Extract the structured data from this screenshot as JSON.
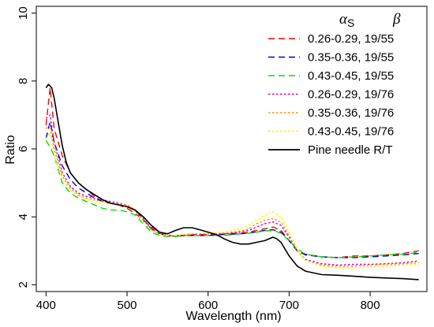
{
  "chart_data": {
    "type": "line",
    "xlabel": "Wavelength (nm)",
    "ylabel": "Ratio",
    "xlim": [
      388,
      870
    ],
    "ylim": [
      1.8,
      10.2
    ],
    "xticks": [
      400,
      500,
      600,
      700,
      800
    ],
    "yticks": [
      2,
      4,
      6,
      8,
      10
    ],
    "grid": false,
    "legend_position": "top-right",
    "legend_header": {
      "alpha": "α",
      "alpha_sub": "S",
      "beta": "β"
    },
    "series": [
      {
        "name": "0.26-0.29, 19/55",
        "color": "#ff0000",
        "dash": "long-dash",
        "x": [
          400,
          405,
          410,
          420,
          430,
          440,
          450,
          460,
          470,
          480,
          490,
          500,
          510,
          520,
          530,
          540,
          550,
          560,
          570,
          580,
          600,
          620,
          640,
          650,
          660,
          670,
          680,
          690,
          700,
          710,
          720,
          740,
          760,
          780,
          800,
          820,
          840,
          860
        ],
        "y": [
          6.7,
          7.8,
          6.6,
          5.8,
          5.3,
          5.0,
          4.8,
          4.6,
          4.45,
          4.4,
          4.35,
          4.25,
          4.1,
          3.9,
          3.7,
          3.55,
          3.45,
          3.42,
          3.45,
          3.48,
          3.48,
          3.5,
          3.52,
          3.55,
          3.6,
          3.65,
          3.7,
          3.6,
          3.3,
          3.0,
          2.9,
          2.82,
          2.8,
          2.85,
          2.85,
          2.88,
          2.92,
          3.0
        ]
      },
      {
        "name": "0.35-0.36, 19/55",
        "color": "#0000cc",
        "dash": "long-dash",
        "x": [
          400,
          405,
          410,
          420,
          430,
          440,
          450,
          460,
          470,
          480,
          490,
          500,
          510,
          520,
          530,
          540,
          550,
          560,
          570,
          580,
          600,
          620,
          640,
          650,
          660,
          670,
          680,
          690,
          700,
          710,
          720,
          740,
          760,
          780,
          800,
          820,
          840,
          860
        ],
        "y": [
          6.3,
          6.8,
          6.2,
          5.5,
          5.1,
          4.85,
          4.7,
          4.55,
          4.45,
          4.4,
          4.35,
          4.3,
          4.2,
          3.9,
          3.65,
          3.5,
          3.45,
          3.45,
          3.45,
          3.45,
          3.45,
          3.48,
          3.5,
          3.52,
          3.56,
          3.6,
          3.62,
          3.55,
          3.3,
          3.0,
          2.88,
          2.82,
          2.8,
          2.8,
          2.82,
          2.85,
          2.88,
          2.92
        ]
      },
      {
        "name": "0.43-0.45, 19/55",
        "color": "#00dd00",
        "dash": "long-dash",
        "x": [
          400,
          405,
          410,
          420,
          430,
          440,
          450,
          460,
          470,
          480,
          490,
          500,
          510,
          520,
          530,
          540,
          550,
          560,
          570,
          580,
          600,
          620,
          640,
          650,
          660,
          670,
          680,
          690,
          700,
          710,
          720,
          740,
          760,
          780,
          800,
          820,
          840,
          860
        ],
        "y": [
          6.25,
          6.05,
          5.8,
          5.0,
          4.7,
          4.55,
          4.45,
          4.35,
          4.25,
          4.2,
          4.2,
          4.15,
          4.05,
          3.8,
          3.55,
          3.45,
          3.42,
          3.42,
          3.45,
          3.45,
          3.45,
          3.45,
          3.5,
          3.52,
          3.55,
          3.58,
          3.6,
          3.52,
          3.3,
          3.05,
          2.9,
          2.82,
          2.8,
          2.82,
          2.85,
          2.88,
          2.9,
          2.95
        ]
      },
      {
        "name": "0.26-0.29, 19/76",
        "color": "#cc00cc",
        "dash": "dotted",
        "x": [
          400,
          405,
          410,
          420,
          430,
          440,
          450,
          460,
          470,
          480,
          490,
          500,
          510,
          520,
          530,
          540,
          550,
          560,
          570,
          580,
          600,
          620,
          640,
          650,
          660,
          670,
          680,
          690,
          700,
          710,
          720,
          740,
          760,
          780,
          800,
          820,
          840,
          860
        ],
        "y": [
          6.9,
          7.0,
          6.2,
          5.3,
          4.9,
          4.7,
          4.6,
          4.55,
          4.5,
          4.45,
          4.4,
          4.35,
          4.2,
          3.95,
          3.65,
          3.5,
          3.45,
          3.45,
          3.45,
          3.48,
          3.5,
          3.5,
          3.55,
          3.6,
          3.7,
          3.8,
          3.85,
          3.75,
          3.4,
          3.0,
          2.75,
          2.62,
          2.58,
          2.6,
          2.6,
          2.62,
          2.65,
          2.7
        ]
      },
      {
        "name": "0.35-0.36, 19/76",
        "color": "#ff8c00",
        "dash": "dotted",
        "x": [
          400,
          405,
          410,
          420,
          430,
          440,
          450,
          460,
          470,
          480,
          490,
          500,
          510,
          520,
          530,
          540,
          550,
          560,
          570,
          580,
          600,
          620,
          640,
          650,
          660,
          670,
          680,
          690,
          700,
          710,
          720,
          740,
          760,
          780,
          800,
          820,
          840,
          860
        ],
        "y": [
          6.6,
          6.7,
          6.0,
          5.2,
          4.85,
          4.65,
          4.55,
          4.5,
          4.45,
          4.4,
          4.38,
          4.35,
          4.2,
          3.9,
          3.6,
          3.5,
          3.45,
          3.45,
          3.48,
          3.5,
          3.5,
          3.52,
          3.58,
          3.65,
          3.8,
          3.9,
          3.95,
          3.85,
          3.45,
          3.0,
          2.72,
          2.58,
          2.55,
          2.55,
          2.58,
          2.6,
          2.62,
          2.65
        ]
      },
      {
        "name": "0.43-0.45, 19/76",
        "color": "#ffee00",
        "dash": "dotted",
        "x": [
          400,
          405,
          410,
          420,
          430,
          440,
          450,
          460,
          470,
          480,
          490,
          500,
          510,
          520,
          530,
          540,
          550,
          560,
          570,
          580,
          600,
          620,
          640,
          650,
          660,
          670,
          680,
          690,
          700,
          710,
          720,
          740,
          760,
          780,
          800,
          820,
          840,
          860
        ],
        "y": [
          6.3,
          6.5,
          5.8,
          5.1,
          4.8,
          4.6,
          4.5,
          4.45,
          4.4,
          4.38,
          4.35,
          4.3,
          4.15,
          3.88,
          3.6,
          3.48,
          3.45,
          3.45,
          3.48,
          3.5,
          3.52,
          3.55,
          3.65,
          3.75,
          3.9,
          4.05,
          4.15,
          4.0,
          3.55,
          3.05,
          2.72,
          2.55,
          2.5,
          2.5,
          2.52,
          2.55,
          2.58,
          2.6
        ]
      },
      {
        "name": "Pine needle R/T",
        "color": "#000000",
        "dash": "solid",
        "x": [
          400,
          403,
          407,
          410,
          415,
          420,
          425,
          430,
          440,
          450,
          460,
          470,
          480,
          490,
          500,
          510,
          520,
          530,
          540,
          550,
          560,
          570,
          580,
          590,
          600,
          610,
          620,
          630,
          640,
          650,
          660,
          670,
          680,
          685,
          690,
          700,
          710,
          720,
          740,
          760,
          780,
          800,
          820,
          840,
          860
        ],
        "y": [
          7.8,
          7.9,
          7.8,
          7.5,
          6.8,
          6.1,
          5.6,
          5.3,
          5.0,
          4.8,
          4.65,
          4.5,
          4.4,
          4.35,
          4.3,
          4.2,
          4.0,
          3.75,
          3.55,
          3.5,
          3.6,
          3.68,
          3.68,
          3.62,
          3.55,
          3.48,
          3.35,
          3.25,
          3.2,
          3.2,
          3.25,
          3.3,
          3.4,
          3.35,
          3.25,
          2.85,
          2.55,
          2.4,
          2.3,
          2.28,
          2.25,
          2.22,
          2.2,
          2.18,
          2.15
        ]
      }
    ]
  }
}
